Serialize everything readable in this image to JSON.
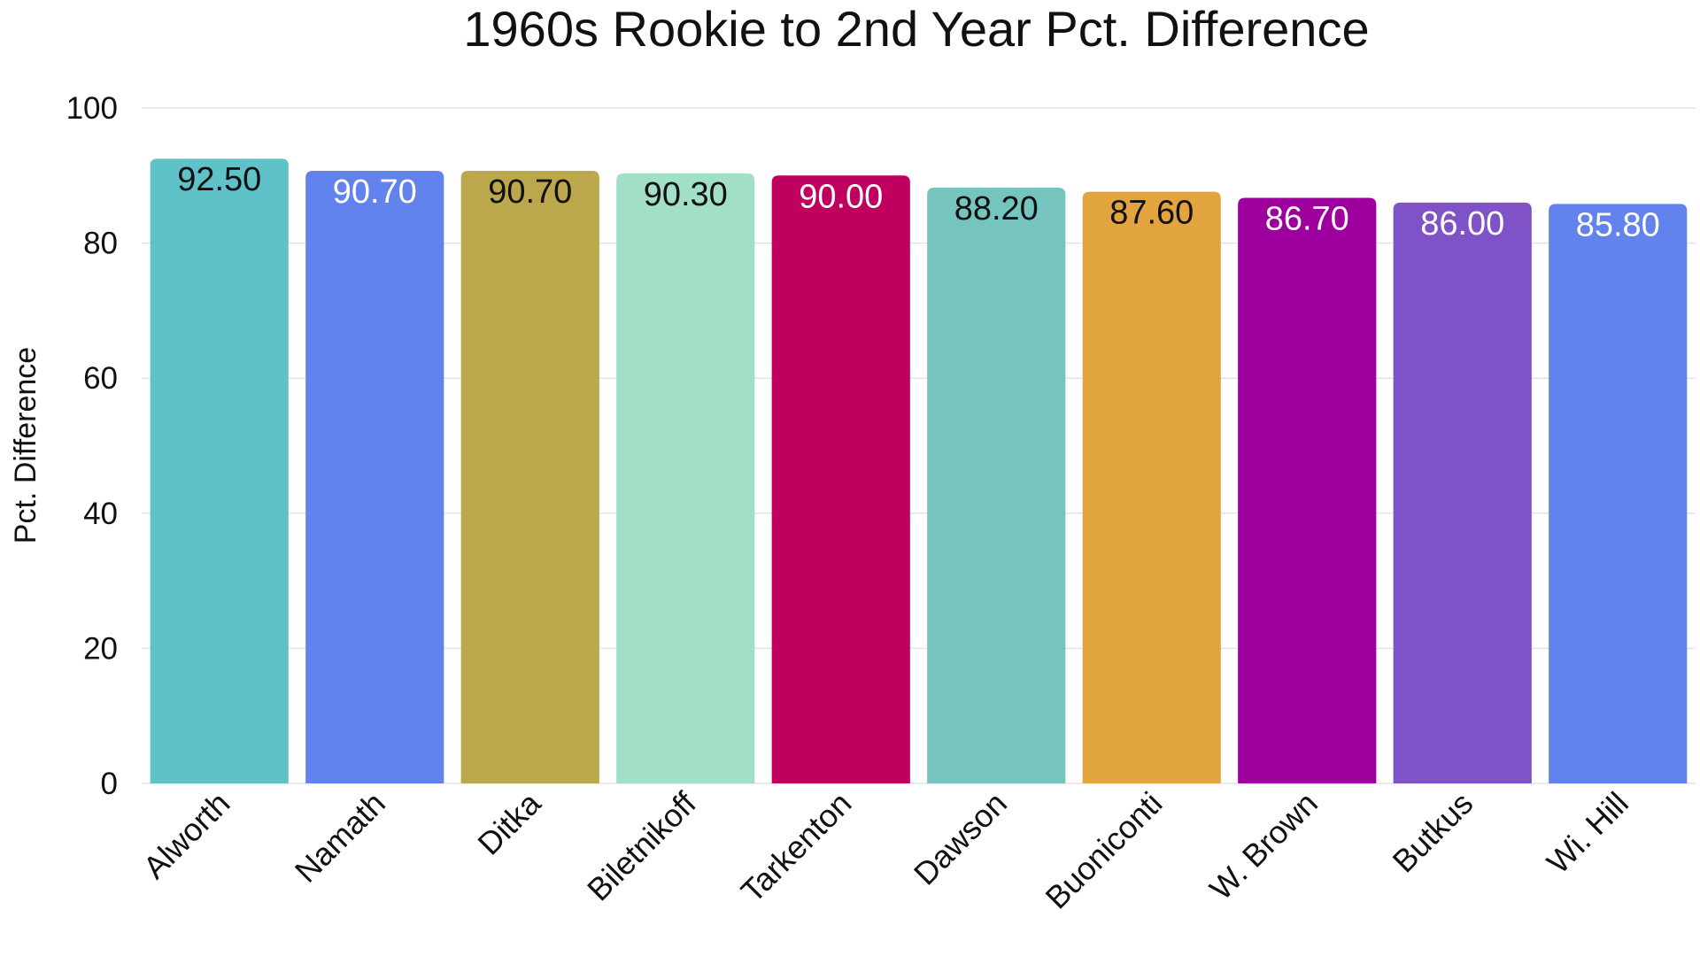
{
  "chart_data": {
    "type": "bar",
    "title": "1960s Rookie to 2nd Year Pct. Difference",
    "ylabel": "Pct. Difference",
    "xlabel": "",
    "ylim": [
      0,
      100
    ],
    "yticks": [
      0,
      20,
      40,
      60,
      80,
      100
    ],
    "grid": true,
    "categories": [
      "Alworth",
      "Namath",
      "Ditka",
      "Biletnikoff",
      "Tarkenton",
      "Dawson",
      "Buoniconti",
      "W. Brown",
      "Butkus",
      "Wi. Hill"
    ],
    "values": [
      92.5,
      90.7,
      90.7,
      90.3,
      90.0,
      88.2,
      87.6,
      86.7,
      86.0,
      85.8
    ],
    "value_labels": [
      "92.50",
      "90.70",
      "90.70",
      "90.30",
      "90.00",
      "88.20",
      "87.60",
      "86.70",
      "86.00",
      "85.80"
    ],
    "colors": [
      "#5fc2c9",
      "#6282ee",
      "#bca84c",
      "#a1e0c6",
      "#c0005f",
      "#75c4be",
      "#e2a43e",
      "#9d009d",
      "#7f52c7",
      "#6282ee"
    ],
    "label_colors": [
      "#111111",
      "#ffffff",
      "#111111",
      "#111111",
      "#ffffff",
      "#111111",
      "#111111",
      "#ffffff",
      "#ffffff",
      "#ffffff"
    ]
  }
}
